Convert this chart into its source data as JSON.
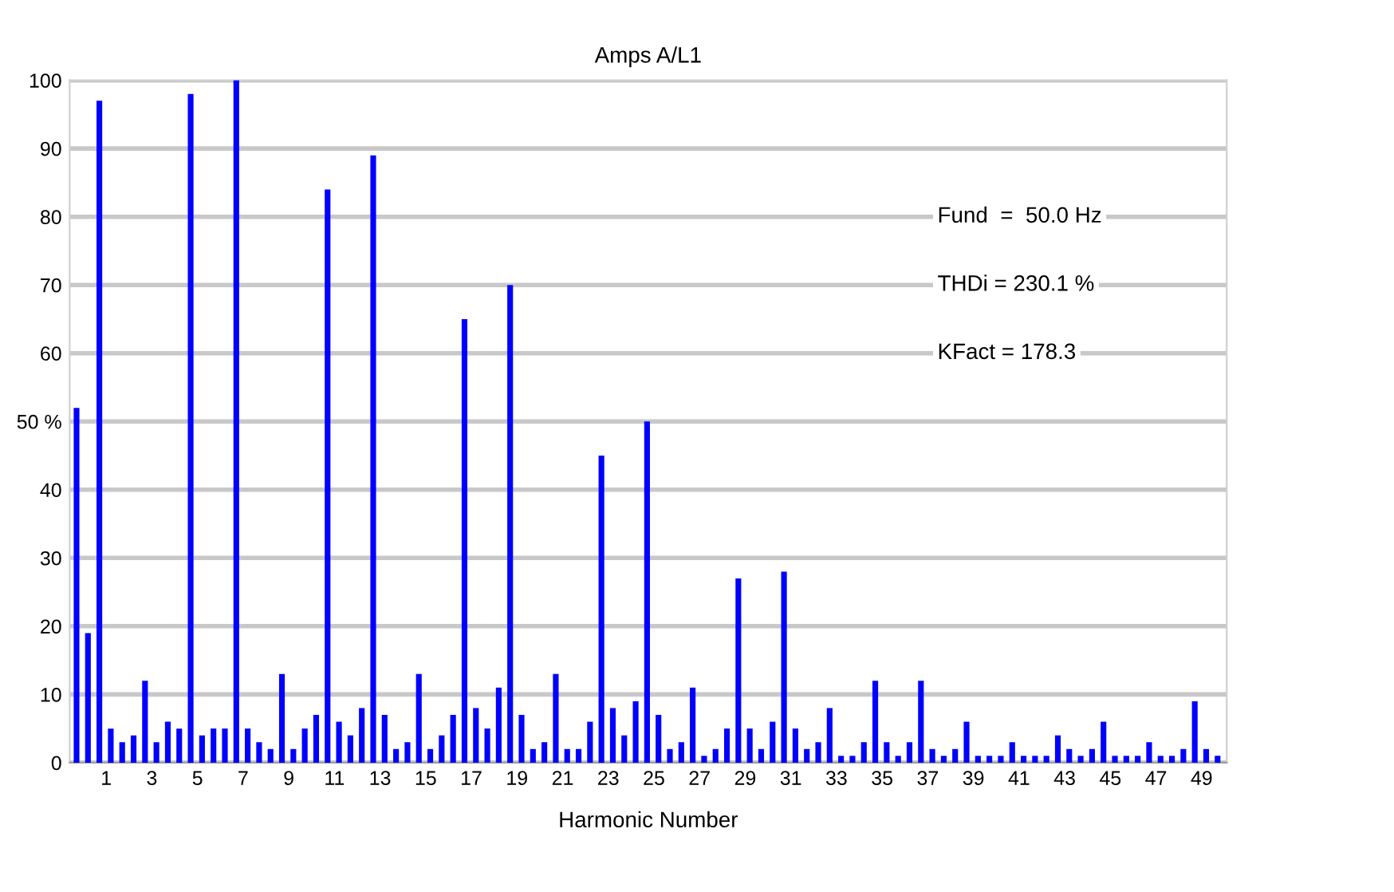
{
  "chart_data": {
    "type": "bar",
    "title": "Amps A/L1",
    "xlabel": "Harmonic Number",
    "categories": [
      null,
      null,
      "1",
      null,
      null,
      null,
      "3",
      null,
      null,
      null,
      "5",
      null,
      null,
      null,
      "7",
      null,
      null,
      null,
      "9",
      null,
      null,
      null,
      "11",
      null,
      null,
      null,
      "13",
      null,
      null,
      null,
      "15",
      null,
      null,
      null,
      "17",
      null,
      null,
      null,
      "19",
      null,
      null,
      null,
      "21",
      null,
      null,
      null,
      "23",
      null,
      null,
      null,
      "25",
      null,
      null,
      null,
      "27",
      null,
      null,
      null,
      "29",
      null,
      null,
      null,
      "31",
      null,
      null,
      null,
      "33",
      null,
      null,
      null,
      "35",
      null,
      null,
      null,
      "37",
      null,
      null,
      null,
      "39",
      null,
      null,
      null,
      "41",
      null,
      null,
      null,
      "43",
      null,
      null,
      null,
      "45",
      null,
      null,
      null,
      "47",
      null,
      null,
      null,
      "49",
      null,
      null
    ],
    "values": [
      52,
      19,
      97,
      5,
      3,
      4,
      12,
      3,
      6,
      5,
      98,
      4,
      5,
      5,
      100,
      5,
      3,
      2,
      13,
      2,
      5,
      7,
      84,
      6,
      4,
      8,
      89,
      7,
      2,
      3,
      13,
      2,
      4,
      7,
      65,
      8,
      5,
      11,
      70,
      7,
      2,
      3,
      13,
      2,
      2,
      6,
      45,
      8,
      4,
      9,
      50,
      7,
      2,
      3,
      11,
      1,
      2,
      5,
      27,
      5,
      2,
      6,
      28,
      5,
      2,
      3,
      8,
      1,
      1,
      3,
      12,
      3,
      1,
      3,
      12,
      2,
      1,
      2,
      6,
      1,
      1,
      1,
      3,
      1,
      1,
      1,
      4,
      2,
      1,
      2,
      6,
      1,
      1,
      1,
      3,
      1,
      1,
      2,
      9,
      2,
      1
    ],
    "color": "#0000ff",
    "ylim": [
      0,
      100
    ],
    "yticks": [
      0,
      10,
      20,
      30,
      40,
      {
        "value": 50,
        "label": "50 %"
      },
      60,
      70,
      80,
      90,
      100
    ],
    "grid": "y",
    "annotations": [
      "Fund  =  50.0 Hz",
      "THDi = 230.1 %",
      "KFact = 178.3"
    ]
  }
}
